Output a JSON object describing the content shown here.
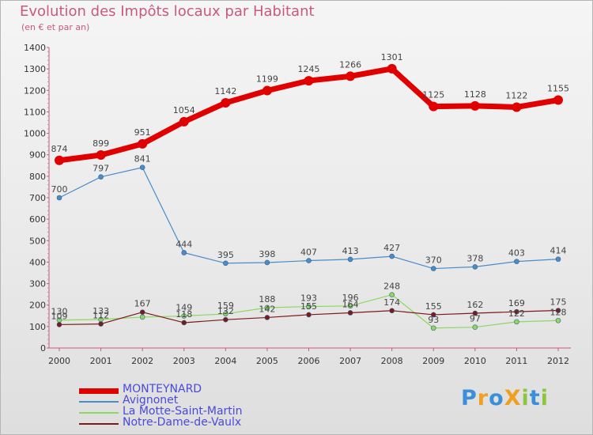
{
  "title": "Evolution des Impôts locaux par Habitant",
  "subtitle": "(en € et par an)",
  "logo": {
    "text": "ProXiti",
    "letters": [
      "P",
      "r",
      "o",
      "X",
      "i",
      "t",
      "i"
    ],
    "colors": [
      "#3a8fd8",
      "#f0a020",
      "#3a8fd8",
      "#f0a020",
      "#8cc63f",
      "#3a8fd8",
      "#8cc63f"
    ]
  },
  "chart_data": {
    "type": "line",
    "categories": [
      "2000",
      "2001",
      "2002",
      "2003",
      "2004",
      "2005",
      "2006",
      "2007",
      "2008",
      "2009",
      "2010",
      "2011",
      "2012"
    ],
    "ylim": [
      0,
      1400
    ],
    "yticks": [
      0,
      100,
      200,
      300,
      400,
      500,
      600,
      700,
      800,
      900,
      1000,
      1100,
      1200,
      1300,
      1400
    ],
    "grid": false,
    "legend_position": "bottom-left",
    "series": [
      {
        "name": "MONTEYNARD",
        "color": "#e00000",
        "values": [
          874,
          899,
          951,
          1054,
          1142,
          1199,
          1245,
          1266,
          1301,
          1125,
          1128,
          1122,
          1155
        ],
        "labels": [
          "874",
          "899",
          "951",
          "1054",
          "1142",
          "1199",
          "1245",
          "1266",
          "1301",
          "1125",
          "1128",
          "1122",
          "1155"
        ]
      },
      {
        "name": "Avignonet",
        "color": "#4a8cc8",
        "values": [
          700,
          797,
          841,
          444,
          395,
          398,
          407,
          413,
          427,
          370,
          378,
          403,
          414
        ],
        "labels": [
          "700",
          "797",
          "841",
          "444",
          "395",
          "398",
          "407",
          "413",
          "427",
          "370",
          "378",
          "403",
          "414"
        ]
      },
      {
        "name": "La Motte-Saint-Martin",
        "color": "#8cd860",
        "values": [
          130,
          133,
          144,
          149,
          159,
          188,
          193,
          196,
          248,
          93,
          97,
          122,
          128
        ],
        "labels": [
          "130",
          "133",
          "",
          "149",
          "159",
          "188",
          "193",
          "196",
          "248",
          "93",
          "97",
          "122",
          "128"
        ]
      },
      {
        "name": "Notre-Dame-de-Vaulx",
        "color": "#7a1a1a",
        "values": [
          109,
          112,
          167,
          118,
          132,
          142,
          155,
          164,
          174,
          155,
          162,
          169,
          175
        ],
        "labels": [
          "109",
          "112",
          "167",
          "118",
          "132",
          "142",
          "155",
          "164",
          "174",
          "155",
          "162",
          "169",
          "175"
        ]
      }
    ]
  }
}
